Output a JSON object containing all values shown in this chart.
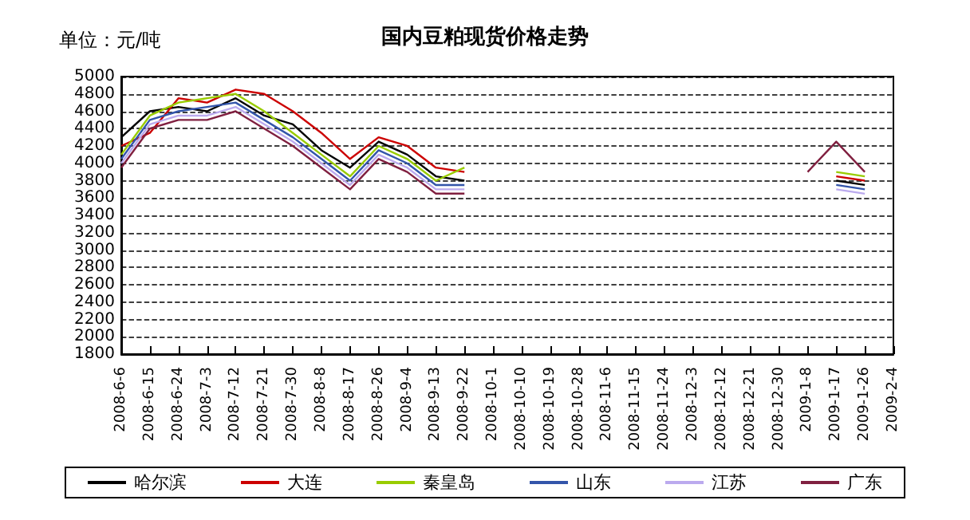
{
  "chart_data": {
    "type": "line",
    "title": "国内豆粕现货价格走势",
    "ylabel": "单位：元/吨",
    "categories": [
      "2008-6-6",
      "2008-6-15",
      "2008-6-24",
      "2008-7-3",
      "2008-7-12",
      "2008-7-21",
      "2008-7-30",
      "2008-8-8",
      "2008-8-17",
      "2008-8-26",
      "2008-9-4",
      "2008-9-13",
      "2008-9-22",
      "2008-10-1",
      "2008-10-10",
      "2008-10-19",
      "2008-10-28",
      "2008-11-6",
      "2008-11-15",
      "2008-11-24",
      "2008-12-3",
      "2008-12-12",
      "2008-12-21",
      "2008-12-30",
      "2009-1-8",
      "2009-1-17",
      "2009-1-26",
      "2009-2-4"
    ],
    "series": [
      {
        "name": "哈尔滨",
        "color": "#000000",
        "values": [
          4300,
          4600,
          4650,
          4600,
          4750,
          4550,
          4450,
          4150,
          3950,
          4250,
          4100,
          3850,
          3800,
          null,
          null,
          null,
          null,
          null,
          null,
          null,
          null,
          null,
          null,
          null,
          null,
          3800,
          3750,
          null
        ]
      },
      {
        "name": "大连",
        "color": "#cc0000",
        "values": [
          4200,
          4350,
          4750,
          4700,
          4850,
          4800,
          4600,
          4350,
          4050,
          4300,
          4200,
          3950,
          3900,
          null,
          null,
          null,
          null,
          null,
          null,
          null,
          null,
          null,
          null,
          null,
          null,
          3850,
          3800,
          null
        ]
      },
      {
        "name": "秦皇岛",
        "color": "#99cc00",
        "values": [
          4100,
          4550,
          4700,
          4750,
          4800,
          4600,
          4350,
          4100,
          3850,
          4200,
          4050,
          3800,
          3950,
          null,
          null,
          null,
          null,
          null,
          null,
          null,
          null,
          null,
          null,
          null,
          null,
          3900,
          3850,
          null
        ]
      },
      {
        "name": "山东",
        "color": "#3355aa",
        "values": [
          4050,
          4500,
          4600,
          4650,
          4700,
          4500,
          4300,
          4050,
          3800,
          4150,
          4000,
          3750,
          3750,
          null,
          null,
          null,
          null,
          null,
          null,
          null,
          null,
          null,
          null,
          null,
          null,
          3750,
          3700,
          null
        ]
      },
      {
        "name": "江苏",
        "color": "#bbaaee",
        "values": [
          4000,
          4450,
          4550,
          4550,
          4650,
          4450,
          4250,
          4000,
          3750,
          4100,
          3950,
          3700,
          3700,
          null,
          null,
          null,
          null,
          null,
          null,
          null,
          null,
          null,
          null,
          null,
          null,
          3700,
          3650,
          null
        ]
      },
      {
        "name": "广东",
        "color": "#802040",
        "values": [
          3950,
          4400,
          4500,
          4500,
          4600,
          4400,
          4200,
          3950,
          3700,
          4050,
          3900,
          3650,
          3650,
          null,
          null,
          null,
          null,
          null,
          null,
          null,
          null,
          null,
          null,
          null,
          3900,
          4250,
          3900,
          null
        ]
      }
    ],
    "ylim": [
      1800,
      5000
    ],
    "yticks": [
      1800,
      2000,
      2200,
      2400,
      2600,
      2800,
      3000,
      3200,
      3400,
      3600,
      3800,
      4000,
      4200,
      4400,
      4600,
      4800,
      5000
    ],
    "grid": "y",
    "legend": "bottom"
  }
}
